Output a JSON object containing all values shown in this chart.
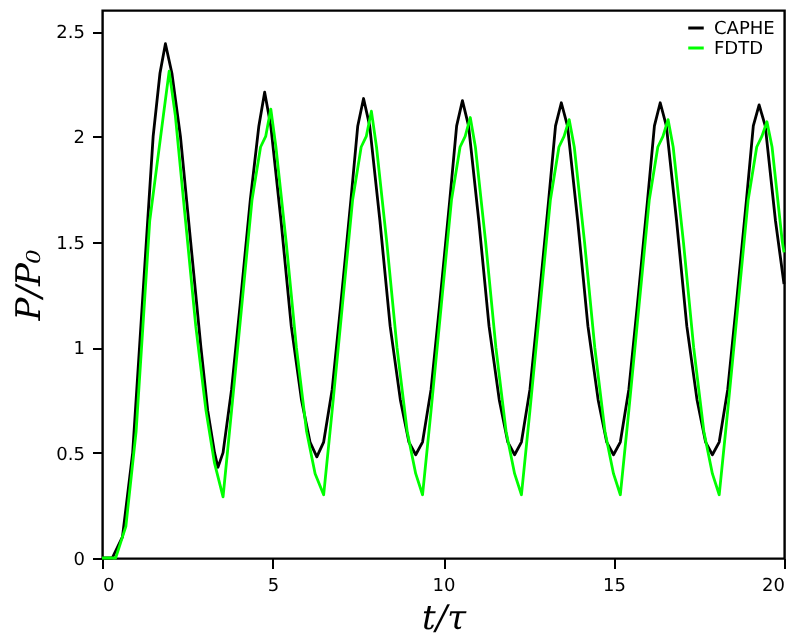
{
  "chart_data": {
    "type": "line",
    "xlabel": "t/τ",
    "ylabel": "P/P₀",
    "xlim": [
      0,
      20
    ],
    "xticks": [
      0,
      5,
      10,
      15,
      20
    ],
    "ylim": [
      0,
      2.6
    ],
    "yticks": [
      0,
      0.5,
      1,
      1.5,
      2,
      2.5
    ],
    "legend": "top right",
    "grid": false,
    "marker": "none",
    "line_style": "solid",
    "series": [
      {
        "name": "CAPHE",
        "color": "#000000",
        "x": [
          0,
          0.3,
          0.6,
          0.9,
          1.1,
          1.3,
          1.5,
          1.7,
          1.86,
          2.05,
          2.3,
          2.6,
          2.9,
          3.1,
          3.3,
          3.4,
          3.55,
          3.8,
          4.05,
          4.35,
          4.6,
          4.77,
          4.95,
          5.25,
          5.55,
          5.85,
          6.1,
          6.3,
          6.5,
          6.75,
          7.0,
          7.3,
          7.5,
          7.67,
          7.85,
          8.15,
          8.45,
          8.75,
          9.0,
          9.2,
          9.4,
          9.65,
          9.9,
          10.2,
          10.4,
          10.57,
          10.75,
          11.05,
          11.35,
          11.65,
          11.9,
          12.1,
          12.3,
          12.55,
          12.8,
          13.1,
          13.3,
          13.47,
          13.65,
          13.95,
          14.25,
          14.55,
          14.8,
          15.0,
          15.2,
          15.45,
          15.7,
          16.0,
          16.2,
          16.37,
          16.55,
          16.85,
          17.15,
          17.45,
          17.7,
          17.9,
          18.1,
          18.35,
          18.6,
          18.9,
          19.1,
          19.27,
          19.45,
          19.75,
          20.0
        ],
        "values": [
          0,
          0,
          0.1,
          0.5,
          1.0,
          1.5,
          2.0,
          2.3,
          2.44,
          2.3,
          2.0,
          1.5,
          1.0,
          0.7,
          0.5,
          0.43,
          0.5,
          0.8,
          1.2,
          1.7,
          2.05,
          2.21,
          2.05,
          1.6,
          1.1,
          0.75,
          0.55,
          0.48,
          0.55,
          0.8,
          1.2,
          1.7,
          2.05,
          2.18,
          2.05,
          1.6,
          1.1,
          0.75,
          0.55,
          0.49,
          0.55,
          0.8,
          1.2,
          1.7,
          2.05,
          2.17,
          2.05,
          1.6,
          1.1,
          0.75,
          0.55,
          0.49,
          0.55,
          0.8,
          1.2,
          1.7,
          2.05,
          2.16,
          2.05,
          1.6,
          1.1,
          0.75,
          0.55,
          0.49,
          0.55,
          0.8,
          1.2,
          1.7,
          2.05,
          2.16,
          2.05,
          1.6,
          1.1,
          0.75,
          0.55,
          0.49,
          0.55,
          0.8,
          1.2,
          1.7,
          2.05,
          2.15,
          2.05,
          1.6,
          1.3
        ]
      },
      {
        "name": "FDTD",
        "color": "#00ff00",
        "x": [
          0,
          0.4,
          0.7,
          1.0,
          1.2,
          1.4,
          1.6,
          1.8,
          1.97,
          2.15,
          2.45,
          2.75,
          3.05,
          3.3,
          3.55,
          3.8,
          4.1,
          4.4,
          4.65,
          4.8,
          4.95,
          5.1,
          5.4,
          5.7,
          6.0,
          6.25,
          6.5,
          6.75,
          7.05,
          7.35,
          7.6,
          7.75,
          7.9,
          8.05,
          8.35,
          8.65,
          8.95,
          9.2,
          9.4,
          9.65,
          9.95,
          10.25,
          10.5,
          10.65,
          10.8,
          10.95,
          11.25,
          11.55,
          11.85,
          12.1,
          12.3,
          12.55,
          12.85,
          13.15,
          13.4,
          13.55,
          13.7,
          13.85,
          14.15,
          14.45,
          14.75,
          15.0,
          15.2,
          15.45,
          15.75,
          16.05,
          16.3,
          16.45,
          16.6,
          16.75,
          17.05,
          17.35,
          17.65,
          17.9,
          18.1,
          18.35,
          18.65,
          18.95,
          19.2,
          19.35,
          19.5,
          19.65,
          19.95,
          20.0
        ],
        "values": [
          0,
          0,
          0.15,
          0.6,
          1.1,
          1.6,
          1.85,
          2.1,
          2.31,
          2.1,
          1.6,
          1.1,
          0.7,
          0.45,
          0.29,
          0.7,
          1.2,
          1.7,
          1.95,
          2.0,
          2.13,
          1.95,
          1.5,
          1.0,
          0.6,
          0.4,
          0.3,
          0.7,
          1.2,
          1.7,
          1.95,
          2.0,
          2.12,
          1.95,
          1.5,
          1.0,
          0.6,
          0.4,
          0.3,
          0.7,
          1.2,
          1.7,
          1.95,
          2.0,
          2.09,
          1.95,
          1.5,
          1.0,
          0.6,
          0.4,
          0.3,
          0.7,
          1.2,
          1.7,
          1.95,
          2.0,
          2.08,
          1.95,
          1.5,
          1.0,
          0.6,
          0.4,
          0.3,
          0.7,
          1.2,
          1.7,
          1.95,
          2.0,
          2.08,
          1.95,
          1.5,
          1.0,
          0.6,
          0.4,
          0.3,
          0.7,
          1.2,
          1.7,
          1.95,
          2.0,
          2.07,
          1.95,
          1.5,
          1.45
        ]
      }
    ]
  }
}
